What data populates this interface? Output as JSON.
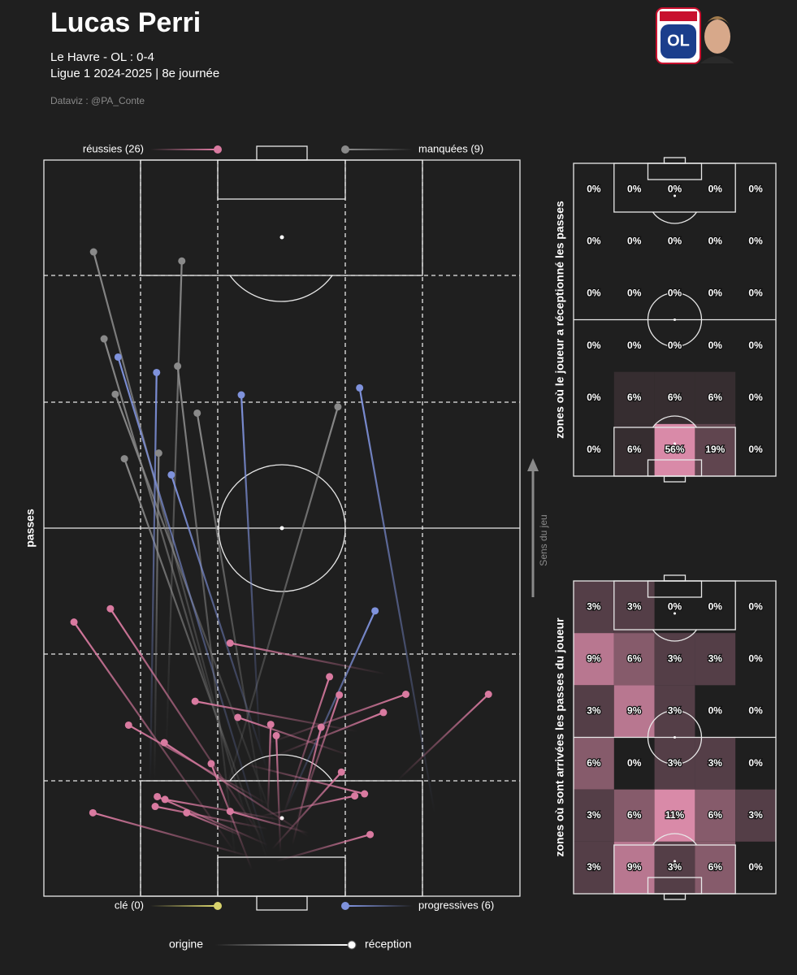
{
  "header": {
    "title": "Lucas Perri",
    "match": "Le Havre - OL : 0-4",
    "competition": "Ligue 1 2024-2025 | 8e journée",
    "credit": "Dataviz : @PA_Conte",
    "direction": "Sens du jeu"
  },
  "chart_data": [
    {
      "type": "passmap",
      "ylabel": "passes",
      "xlim": [
        0,
        68
      ],
      "ylim": [
        0,
        105
      ],
      "scale_legend": {
        "start": "origine",
        "end": "réception"
      },
      "series": [
        {
          "name": "réussies (26)",
          "color": "#d97aa0",
          "x_start": [
            27.4,
            31.4,
            48.8,
            34.3,
            36.1,
            44.8,
            43.6,
            32.0,
            33.2,
            32.0,
            50.6,
            32.0,
            37.8,
            28.5,
            30.9,
            32.0,
            32.0,
            34.3,
            37.8,
            29.7,
            33.2,
            33.8,
            29.7,
            35.5,
            28.5,
            32.6
          ],
          "y_start": [
            6.1,
            7.9,
            31.7,
            11.9,
            10.8,
            23.5,
            20.1,
            11.9,
            20.1,
            21.8,
            16.6,
            13.1,
            8.5,
            18.9,
            11.4,
            7.3,
            9.6,
            10.8,
            9.0,
            5.6,
            5.0,
            6.1,
            3.8,
            7.3,
            8.5,
            6.7
          ],
          "x": [
            4.3,
            9.5,
            26.6,
            40.8,
            42.2,
            21.6,
            27.7,
            32.4,
            48.5,
            51.7,
            63.5,
            12.1,
            17.2,
            45.8,
            44.4,
            16.2,
            15.9,
            17.3,
            26.6,
            7.0,
            46.6,
            33.2,
            23.9,
            39.6,
            20.4,
            42.5
          ],
          "y": [
            39.1,
            41.0,
            36.1,
            31.3,
            28.7,
            27.8,
            25.5,
            24.5,
            26.2,
            28.8,
            28.8,
            24.4,
            21.9,
            14.6,
            14.3,
            14.2,
            12.8,
            13.8,
            12.1,
            11.9,
            8.8,
            22.9,
            18.9,
            24.1,
            11.9,
            17.7
          ]
        },
        {
          "name": "manquées (9)",
          "color": "#8a8a8a",
          "x_start": [
            28.5,
            17.5,
            29.7,
            27.4,
            33.2,
            31.4,
            32.0,
            15.8,
            25.1
          ],
          "y_start": [
            11.9,
            21.2,
            8.5,
            5.0,
            9.6,
            11.9,
            5.0,
            16.6,
            11.9
          ],
          "x": [
            7.1,
            19.7,
            8.6,
            19.1,
            10.2,
            21.9,
            11.5,
            16.4,
            42.0
          ],
          "y": [
            91.9,
            90.6,
            79.5,
            75.6,
            71.6,
            68.9,
            62.4,
            63.2,
            69.8
          ]
        },
        {
          "name": "clé (0)",
          "color": "#d8d36c",
          "x_start": [],
          "y_start": [],
          "x": [],
          "y": []
        },
        {
          "name": "progressives (6)",
          "color": "#7f92dc",
          "x_start": [
            32.0,
            15.2,
            30.9,
            32.0,
            55.8,
            34.3
          ],
          "y_start": [
            6.1,
            16.6,
            20.1,
            17.7,
            11.9,
            11.9
          ],
          "x": [
            10.6,
            16.1,
            28.2,
            18.2,
            45.1,
            47.3
          ],
          "y": [
            76.9,
            74.7,
            71.5,
            60.1,
            72.5,
            40.7
          ]
        }
      ]
    },
    {
      "type": "heatmap",
      "ylabel": "zones où le joueur a réceptionné les passes",
      "colors": [
        "#222222",
        "#d98aa8"
      ],
      "rows": [
        {
          "values": [
            0,
            0,
            0,
            0,
            0
          ],
          "value_labels": [
            "0%",
            "0%",
            "0%",
            "0%",
            "0%"
          ]
        },
        {
          "values": [
            0,
            0,
            0,
            0,
            0
          ],
          "value_labels": [
            "0%",
            "0%",
            "0%",
            "0%",
            "0%"
          ]
        },
        {
          "values": [
            0,
            0,
            0,
            0,
            0
          ],
          "value_labels": [
            "0%",
            "0%",
            "0%",
            "0%",
            "0%"
          ]
        },
        {
          "values": [
            0,
            0,
            0,
            0,
            0
          ],
          "value_labels": [
            "0%",
            "0%",
            "0%",
            "0%",
            "0%"
          ]
        },
        {
          "values": [
            0,
            6,
            6,
            6,
            0
          ],
          "value_labels": [
            "0%",
            "6%",
            "6%",
            "6%",
            "0%"
          ]
        },
        {
          "values": [
            0,
            6,
            56,
            19,
            0
          ],
          "value_labels": [
            "0%",
            "6%",
            "56%",
            "19%",
            "0%"
          ]
        }
      ]
    },
    {
      "type": "heatmap",
      "ylabel": "zones où sont arrivées les passes du joueur",
      "colors": [
        "#222222",
        "#d98aa8"
      ],
      "rows": [
        {
          "values": [
            3,
            3,
            0,
            0,
            0
          ],
          "value_labels": [
            "3%",
            "3%",
            "0%",
            "0%",
            "0%"
          ]
        },
        {
          "values": [
            9,
            6,
            3,
            3,
            0
          ],
          "value_labels": [
            "9%",
            "6%",
            "3%",
            "3%",
            "0%"
          ]
        },
        {
          "values": [
            3,
            9,
            3,
            0,
            0
          ],
          "value_labels": [
            "3%",
            "9%",
            "3%",
            "0%",
            "0%"
          ]
        },
        {
          "values": [
            6,
            0,
            3,
            3,
            0
          ],
          "value_labels": [
            "6%",
            "0%",
            "3%",
            "3%",
            "0%"
          ]
        },
        {
          "values": [
            3,
            6,
            11,
            6,
            3
          ],
          "value_labels": [
            "3%",
            "6%",
            "11%",
            "6%",
            "3%"
          ]
        },
        {
          "values": [
            3,
            9,
            3,
            6,
            0
          ],
          "value_labels": [
            "3%",
            "9%",
            "3%",
            "6%",
            "0%"
          ]
        }
      ]
    }
  ]
}
